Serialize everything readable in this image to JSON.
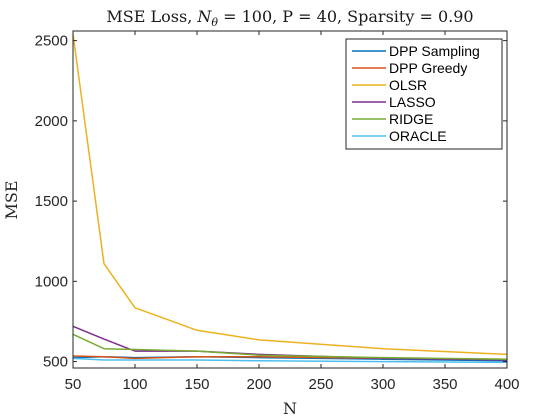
{
  "chart_data": {
    "type": "line",
    "title": {
      "prefix": "MSE Loss, ",
      "n_symbol": "N",
      "n_subscript": "θ",
      "n_value": " = 100, P = 40, Sparsity = 0.90"
    },
    "xlabel": "N",
    "ylabel": "MSE",
    "xlim": [
      50,
      400
    ],
    "ylim": [
      460,
      2560
    ],
    "xticks": [
      50,
      100,
      150,
      200,
      250,
      300,
      350,
      400
    ],
    "yticks": [
      500,
      1000,
      1500,
      2000,
      2500
    ],
    "grid": false,
    "legend_position": "top-right",
    "x": [
      50,
      75,
      100,
      150,
      200,
      300,
      400
    ],
    "series": [
      {
        "name": "DPP Sampling",
        "color": "#0072bd",
        "values": [
          525,
          530,
          525,
          530,
          525,
          515,
          505
        ]
      },
      {
        "name": "DPP Greedy",
        "color": "#d95319",
        "values": [
          535,
          530,
          520,
          530,
          530,
          520,
          515
        ]
      },
      {
        "name": "OLSR",
        "color": "#edb120",
        "values": [
          2540,
          1110,
          835,
          695,
          635,
          580,
          545
        ]
      },
      {
        "name": "LASSO",
        "color": "#7e2f8e",
        "values": [
          720,
          640,
          565,
          565,
          545,
          520,
          510
        ]
      },
      {
        "name": "RIDGE",
        "color": "#77ac30",
        "values": [
          670,
          580,
          575,
          565,
          540,
          525,
          515
        ]
      },
      {
        "name": "ORACLE",
        "color": "#4dbeee",
        "values": [
          520,
          510,
          510,
          510,
          505,
          500,
          495
        ]
      }
    ]
  }
}
